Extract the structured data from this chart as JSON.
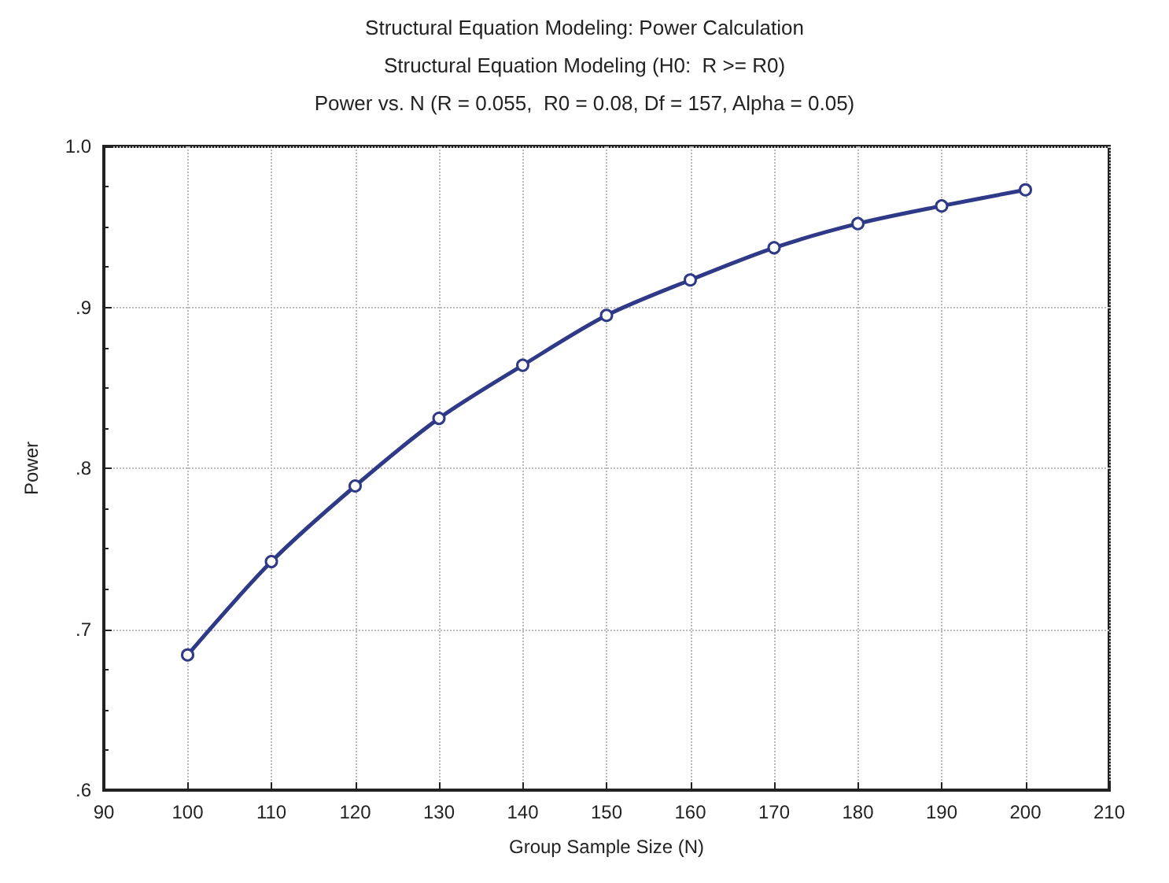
{
  "chart_data": {
    "type": "line",
    "title": "Structural Equation Modeling: Power Calculation",
    "subtitle": "Structural Equation Modeling (H0:  R >= R0)\nPower vs. N (R = 0.055,  R0 = 0.08, Df = 157, Alpha = 0.05)",
    "xlabel": "Group Sample Size (N)",
    "ylabel": "Power",
    "x": [
      100,
      110,
      120,
      130,
      140,
      150,
      160,
      170,
      180,
      190,
      200
    ],
    "series": [
      {
        "color": "#2e3a87",
        "values": [
          0.684,
          0.742,
          0.789,
          0.831,
          0.864,
          0.895,
          0.917,
          0.937,
          0.952,
          0.963,
          0.973
        ]
      }
    ],
    "xlim": [
      90,
      210
    ],
    "xticks": [
      90,
      100,
      110,
      120,
      130,
      140,
      150,
      160,
      170,
      180,
      190,
      200,
      210
    ],
    "ylim": [
      0.6,
      1.0
    ],
    "yticks": [
      {
        "value": 0.6,
        "label": ".6"
      },
      {
        "value": 0.7,
        "label": ".7"
      },
      {
        "value": 0.8,
        "label": ".8"
      },
      {
        "value": 0.9,
        "label": ".9"
      },
      {
        "value": 1.0,
        "label": "1.0"
      }
    ],
    "grid": true,
    "marker": "circle",
    "line_style": "solid"
  }
}
